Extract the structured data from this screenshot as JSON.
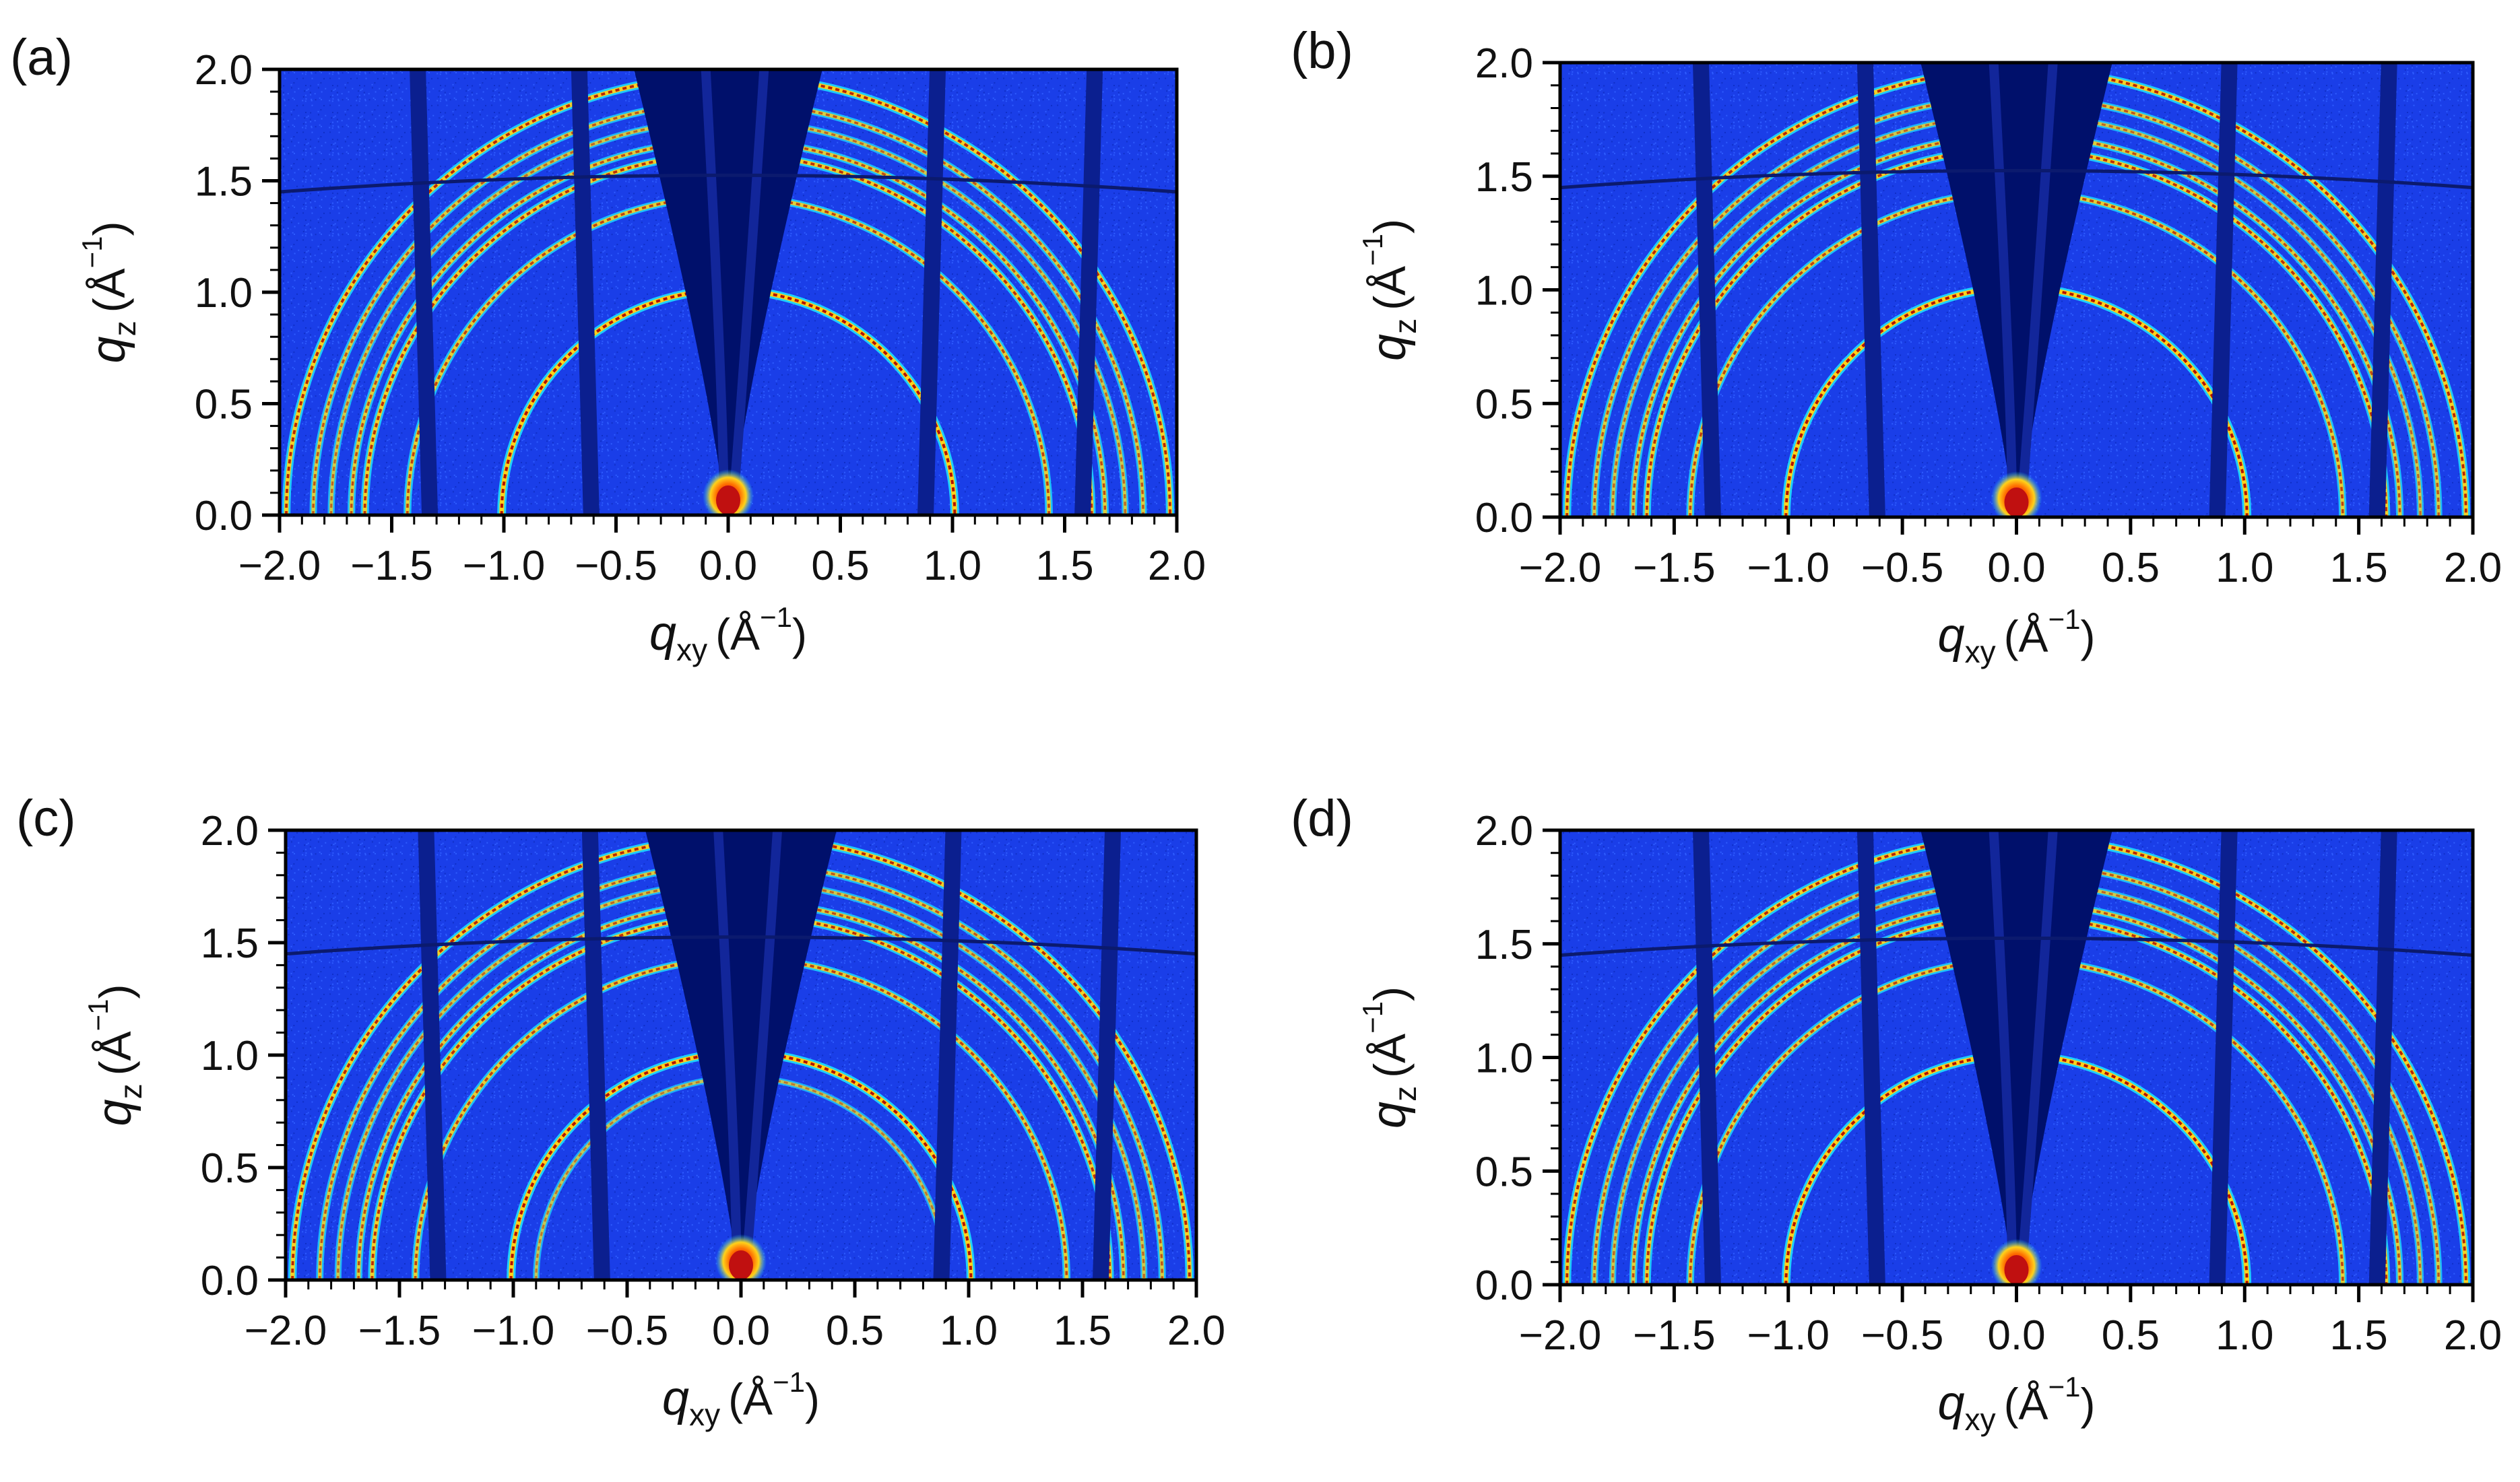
{
  "figure": {
    "colors": {
      "background": "#1a3ee8",
      "shadow": "#00106b",
      "ring_peak": "#b31200",
      "ring_mid": "#ffd21a",
      "ring_low": "#1fd8ff",
      "beam": "#c01010"
    }
  },
  "chart_data": [
    {
      "type": "heatmap",
      "panel_label": "(a)",
      "xlabel": {
        "symbol": "q",
        "sub": "xy",
        "unit": "(Å",
        "sup": "−1",
        "close": ")"
      },
      "ylabel": {
        "symbol": "q",
        "sub": "z",
        "unit": "(Å",
        "sup": "−1",
        "close": ")"
      },
      "xlim": [
        -2.0,
        2.0
      ],
      "ylim": [
        0.0,
        2.0
      ],
      "xticks": [
        "−2.0",
        "−1.5",
        "−1.0",
        "−0.5",
        "0.0",
        "0.5",
        "1.0",
        "1.5",
        "2.0"
      ],
      "yticks": [
        "0.0",
        "0.5",
        "1.0",
        "1.5",
        "2.0"
      ],
      "gaps_qxy": [
        -1.33,
        -0.61,
        0.88,
        1.58
      ],
      "rings_q": [
        1.01,
        1.43,
        1.62,
        1.68,
        1.77,
        1.85,
        1.97
      ],
      "ring_strength": [
        1.0,
        0.75,
        0.85,
        0.7,
        0.55,
        0.65,
        0.9
      ]
    },
    {
      "type": "heatmap",
      "panel_label": "(b)",
      "xlabel": {
        "symbol": "q",
        "sub": "xy",
        "unit": "(Å",
        "sup": "−1",
        "close": ")"
      },
      "ylabel": {
        "symbol": "q",
        "sub": "z",
        "unit": "(Å",
        "sup": "−1",
        "close": ")"
      },
      "xlim": [
        -2.0,
        2.0
      ],
      "ylim": [
        0.0,
        2.0
      ],
      "xticks": [
        "−2.0",
        "−1.5",
        "−1.0",
        "−0.5",
        "0.0",
        "0.5",
        "1.0",
        "1.5",
        "2.0"
      ],
      "yticks": [
        "0.0",
        "0.5",
        "1.0",
        "1.5",
        "2.0"
      ],
      "gaps_qxy": [
        -1.33,
        -0.61,
        0.88,
        1.58
      ],
      "rings_q": [
        1.01,
        1.43,
        1.62,
        1.68,
        1.77,
        1.85,
        1.97
      ],
      "ring_strength": [
        1.0,
        0.75,
        0.85,
        0.7,
        0.55,
        0.65,
        0.9
      ]
    },
    {
      "type": "heatmap",
      "panel_label": "(c)",
      "xlabel": {
        "symbol": "q",
        "sub": "xy",
        "unit": "(Å",
        "sup": "−1",
        "close": ")"
      },
      "ylabel": {
        "symbol": "q",
        "sub": "z",
        "unit": "(Å",
        "sup": "−1",
        "close": ")"
      },
      "xlim": [
        -2.0,
        2.0
      ],
      "ylim": [
        0.0,
        2.0
      ],
      "xticks": [
        "−2.0",
        "−1.5",
        "−1.0",
        "−0.5",
        "0.0",
        "0.5",
        "1.0",
        "1.5",
        "2.0"
      ],
      "yticks": [
        "0.0",
        "0.5",
        "1.0",
        "1.5",
        "2.0"
      ],
      "gaps_qxy": [
        -1.33,
        -0.61,
        0.88,
        1.58
      ],
      "rings_q": [
        0.9,
        1.01,
        1.43,
        1.62,
        1.68,
        1.77,
        1.85,
        1.97
      ],
      "ring_strength": [
        0.45,
        1.0,
        0.75,
        0.85,
        0.7,
        0.55,
        0.65,
        0.9
      ]
    },
    {
      "type": "heatmap",
      "panel_label": "(d)",
      "xlabel": {
        "symbol": "q",
        "sub": "xy",
        "unit": "(Å",
        "sup": "−1",
        "close": ")"
      },
      "ylabel": {
        "symbol": "q",
        "sub": "z",
        "unit": "(Å",
        "sup": "−1",
        "close": ")"
      },
      "xlim": [
        -2.0,
        2.0
      ],
      "ylim": [
        0.0,
        2.0
      ],
      "xticks": [
        "−2.0",
        "−1.5",
        "−1.0",
        "−0.5",
        "0.0",
        "0.5",
        "1.0",
        "1.5",
        "2.0"
      ],
      "yticks": [
        "0.0",
        "0.5",
        "1.0",
        "1.5",
        "2.0"
      ],
      "gaps_qxy": [
        -1.33,
        -0.61,
        0.88,
        1.58
      ],
      "rings_q": [
        1.01,
        1.43,
        1.62,
        1.68,
        1.77,
        1.85,
        1.97
      ],
      "ring_strength": [
        1.0,
        0.75,
        0.85,
        0.7,
        0.55,
        0.65,
        0.9
      ]
    }
  ]
}
